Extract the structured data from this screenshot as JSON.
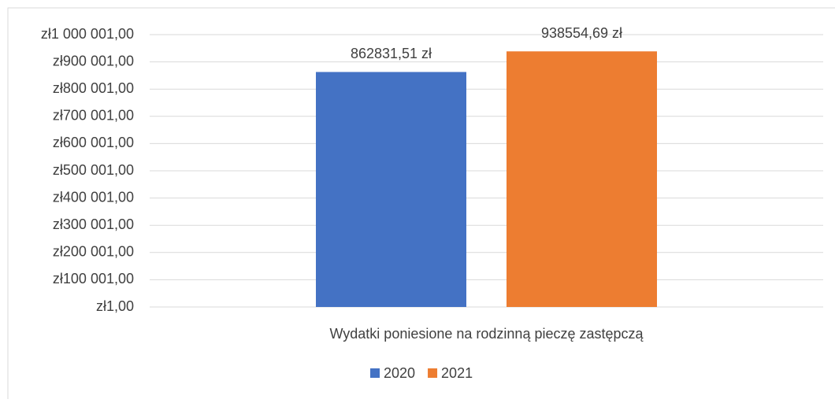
{
  "chart_data": {
    "type": "bar",
    "categories": [
      "Wydatki poniesione na rodzinną pieczę zastępczą"
    ],
    "series": [
      {
        "name": "2020",
        "color": "#4472c4",
        "values": [
          862831.51
        ],
        "value_labels": [
          "862831,51 zł"
        ]
      },
      {
        "name": "2021",
        "color": "#ed7d31",
        "values": [
          938554.69
        ],
        "value_labels": [
          "938554,69 zł"
        ]
      }
    ],
    "ylim": [
      1,
      1000001
    ],
    "yticks": [
      {
        "value": 1,
        "label": "zł1,00"
      },
      {
        "value": 100001,
        "label": "zł100 001,00"
      },
      {
        "value": 200001,
        "label": "zł200 001,00"
      },
      {
        "value": 300001,
        "label": "zł300 001,00"
      },
      {
        "value": 400001,
        "label": "zł400 001,00"
      },
      {
        "value": 500001,
        "label": "zł500 001,00"
      },
      {
        "value": 600001,
        "label": "zł600 001,00"
      },
      {
        "value": 700001,
        "label": "zł700 001,00"
      },
      {
        "value": 800001,
        "label": "zł800 001,00"
      },
      {
        "value": 900001,
        "label": "zł900 001,00"
      },
      {
        "value": 1000001,
        "label": "zł1 000 001,00"
      }
    ],
    "grid": true,
    "legend": "bottom"
  }
}
